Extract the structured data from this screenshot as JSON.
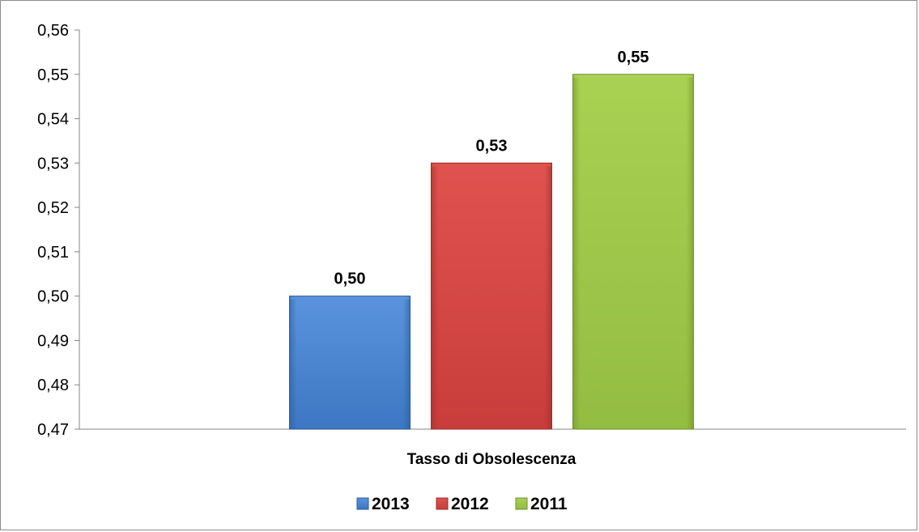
{
  "chart_data": {
    "type": "bar",
    "categories": [
      "Tasso di Obsolescenza"
    ],
    "series": [
      {
        "name": "2013",
        "values": [
          0.5
        ],
        "label": "0,50",
        "color": "#3d77c3",
        "color_light": "#5a93dd",
        "color_dark": "#2c5a99"
      },
      {
        "name": "2012",
        "values": [
          0.53
        ],
        "label": "0,53",
        "color": "#c83d3b",
        "color_light": "#e0524e",
        "color_dark": "#9c2c2a"
      },
      {
        "name": "2011",
        "values": [
          0.55
        ],
        "label": "0,55",
        "color": "#93bd42",
        "color_light": "#a9d152",
        "color_dark": "#6f8f2c"
      }
    ],
    "ylim": [
      0.47,
      0.56
    ],
    "yticks": [
      0.47,
      0.48,
      0.49,
      0.5,
      0.51,
      0.52,
      0.53,
      0.54,
      0.55,
      0.56
    ],
    "ytick_labels": [
      "0,47",
      "0,48",
      "0,49",
      "0,50",
      "0,51",
      "0,52",
      "0,53",
      "0,54",
      "0,55",
      "0,56"
    ],
    "title": "",
    "xlabel": "",
    "ylabel": "",
    "grid": false,
    "legend_position": "bottom"
  }
}
